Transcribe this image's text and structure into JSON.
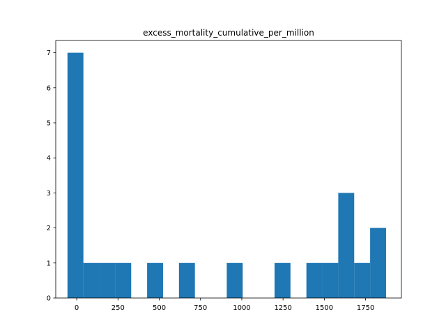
{
  "chart_data": {
    "type": "bar",
    "subtype": "histogram",
    "title": "excess_mortality_cumulative_per_million",
    "xlabel": "",
    "ylabel": "",
    "xlim": [
      -127,
      1967
    ],
    "ylim": [
      0,
      7.35
    ],
    "bar_color": "#1f77b4",
    "bin_edges": [
      -56.0,
      40.5,
      137.0,
      233.5,
      330.0,
      426.5,
      523.0,
      619.5,
      716.0,
      812.5,
      909.0,
      1005.5,
      1102.0,
      1198.5,
      1295.0,
      1391.5,
      1488.0,
      1584.5,
      1681.0,
      1777.5,
      1874.0
    ],
    "bin_width": 96.5,
    "counts": [
      7,
      1,
      1,
      1,
      0,
      1,
      0,
      1,
      0,
      0,
      1,
      0,
      0,
      1,
      0,
      1,
      1,
      3,
      1,
      2
    ],
    "x_ticks": [
      0,
      250,
      500,
      750,
      1000,
      1250,
      1500,
      1750
    ],
    "x_tick_labels": [
      "0",
      "250",
      "500",
      "750",
      "1000",
      "1250",
      "1500",
      "1750"
    ],
    "y_ticks": [
      0,
      1,
      2,
      3,
      4,
      5,
      6,
      7
    ],
    "y_tick_labels": [
      "0",
      "1",
      "2",
      "3",
      "4",
      "5",
      "6",
      "7"
    ],
    "grid": false,
    "legend": "none"
  }
}
